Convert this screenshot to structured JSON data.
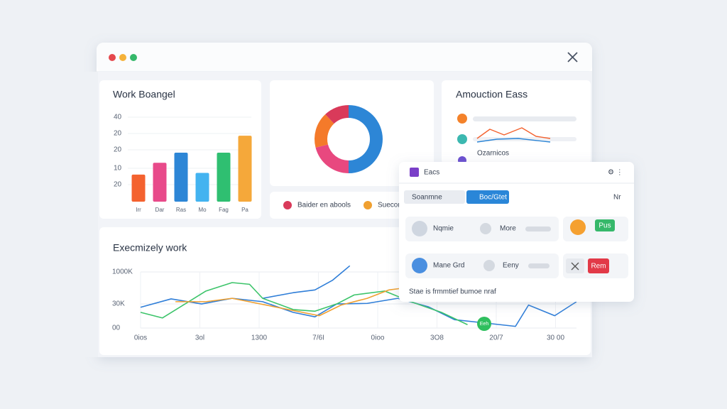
{
  "bar_chart": {
    "type": "bar",
    "title": "Work Boangel",
    "axis_labels": [
      "40",
      "20",
      "20",
      "10",
      "20"
    ],
    "categories": [
      "Irr",
      "Dar",
      "Ras",
      "Mo",
      "Fag",
      "Pa"
    ],
    "values": [
      16,
      23,
      29,
      17,
      29,
      39
    ],
    "colors": [
      "#f4622f",
      "#e84a8a",
      "#2d86d6",
      "#43b3f0",
      "#2fbf71",
      "#f5a83a"
    ],
    "ylim": [
      0,
      50
    ]
  },
  "donut_chart": {
    "type": "pie",
    "values": [
      50,
      21,
      17,
      12
    ],
    "colors": [
      "#2d86d6",
      "#e8487f",
      "#f47a2a",
      "#d93a5a"
    ],
    "legend": [
      {
        "label": "Baider en abools",
        "color": "#d93a5a"
      },
      {
        "label": "Suecom",
        "color": "#f0a030"
      }
    ]
  },
  "mini_chart": {
    "type": "line",
    "title": "Amouction Eass",
    "caption": "Ozarnicos",
    "xlim": [
      0,
      103
    ],
    "ylim": [
      0,
      30
    ],
    "series": [
      {
        "color": "#f4622f",
        "x": [
          0,
          18,
          38,
          63,
          83,
          103
        ],
        "values": [
          10,
          23,
          15,
          25,
          13,
          10
        ]
      },
      {
        "color": "#2d86d6",
        "x": [
          0,
          28,
          58,
          103
        ],
        "values": [
          5,
          9,
          10,
          5
        ]
      }
    ]
  },
  "line_chart": {
    "type": "line",
    "title": "Execmizely work",
    "axis_labels": [
      "1000K",
      "30K",
      "00"
    ],
    "x_labels": [
      "0ios",
      "3ol",
      "1300",
      "7/6I",
      "0ioo",
      "3O8",
      "20/7",
      "30 00"
    ],
    "xlim": [
      0,
      100
    ],
    "ylim": [
      0,
      120
    ],
    "annotation": "Eeh",
    "series": [
      {
        "color": "#2f7ed8",
        "x": [
          0,
          7,
          14,
          21,
          28,
          35,
          40,
          45,
          52,
          59,
          66,
          72,
          79,
          86,
          89,
          95,
          100
        ],
        "values": [
          37,
          52,
          43,
          53,
          47,
          28,
          20,
          43,
          44,
          53,
          38,
          15,
          9,
          3,
          41,
          22,
          47
        ]
      },
      {
        "color": "#2f7ed8",
        "x": [
          28,
          35,
          40,
          44,
          48
        ],
        "values": [
          53,
          63,
          68,
          85,
          111
        ]
      },
      {
        "color": "#3cc46a",
        "x": [
          0,
          5,
          15,
          21,
          25,
          28,
          35,
          40,
          45,
          49,
          56,
          62,
          69,
          75
        ],
        "values": [
          28,
          18,
          66,
          81,
          78,
          53,
          33,
          30,
          43,
          59,
          66,
          47,
          28,
          6
        ]
      },
      {
        "color": "#f0a030",
        "x": [
          8,
          15,
          21,
          41,
          46,
          52,
          57,
          61
        ],
        "values": [
          47,
          47,
          53,
          22,
          41,
          53,
          68,
          72
        ]
      }
    ]
  },
  "popup": {
    "title": "Eacs",
    "tabs": [
      "Soanmne",
      "Boc/Gtet"
    ],
    "corner": "Nr",
    "rows": [
      {
        "name": "Nqmie",
        "extra": "More",
        "action": "Pus"
      },
      {
        "name": "Mane Grd",
        "extra": "Eeny",
        "action": "Rem"
      }
    ],
    "footer": "Stae is frmmtief bumoe nraf"
  }
}
